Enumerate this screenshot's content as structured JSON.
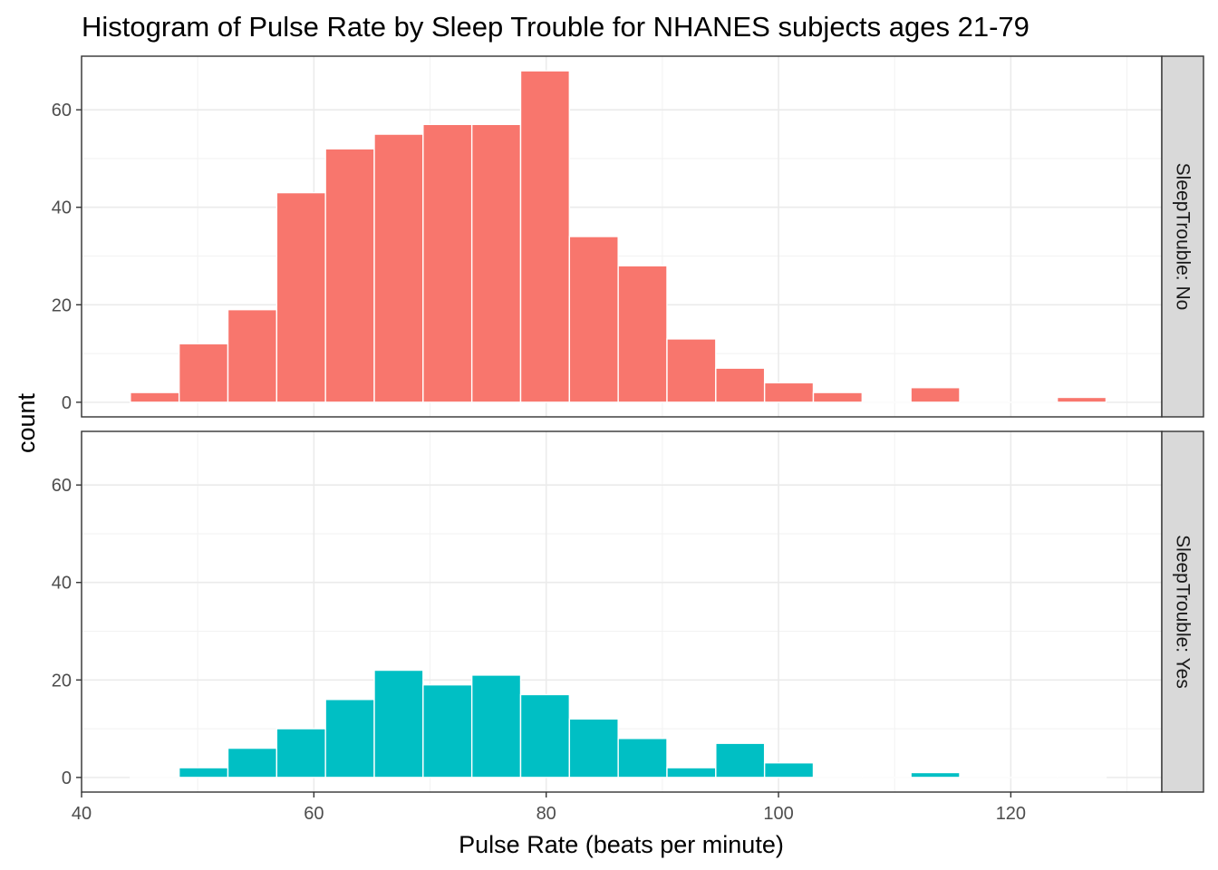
{
  "chart_data": {
    "type": "bar",
    "title": "Histogram of Pulse Rate by Sleep Trouble for NHANES subjects ages 21-79",
    "xlabel": "Pulse Rate (beats per minute)",
    "ylabel": "count",
    "xlim": [
      40,
      133
    ],
    "ylim": [
      -3,
      71
    ],
    "x_ticks": [
      40,
      60,
      80,
      100,
      120
    ],
    "y_ticks": [
      0,
      20,
      40,
      60
    ],
    "bin_width": 4.2,
    "bin_centers": [
      46.3,
      50.5,
      54.7,
      58.9,
      63.1,
      67.3,
      71.5,
      75.7,
      79.9,
      84.1,
      88.3,
      92.5,
      96.7,
      100.9,
      105.1,
      109.3,
      113.5,
      117.7,
      121.9,
      126.1
    ],
    "grid": true,
    "legend": "none",
    "panels": [
      {
        "strip": "SleepTrouble: No",
        "color": "#F8766D",
        "values": [
          2,
          12,
          19,
          43,
          52,
          55,
          57,
          57,
          68,
          34,
          28,
          13,
          7,
          4,
          2,
          0,
          3,
          0,
          0,
          1
        ]
      },
      {
        "strip": "SleepTrouble: Yes",
        "color": "#00BFC4",
        "values": [
          0,
          2,
          6,
          10,
          16,
          22,
          19,
          21,
          17,
          12,
          8,
          2,
          7,
          3,
          0,
          0,
          1,
          0,
          0,
          0
        ]
      }
    ]
  }
}
